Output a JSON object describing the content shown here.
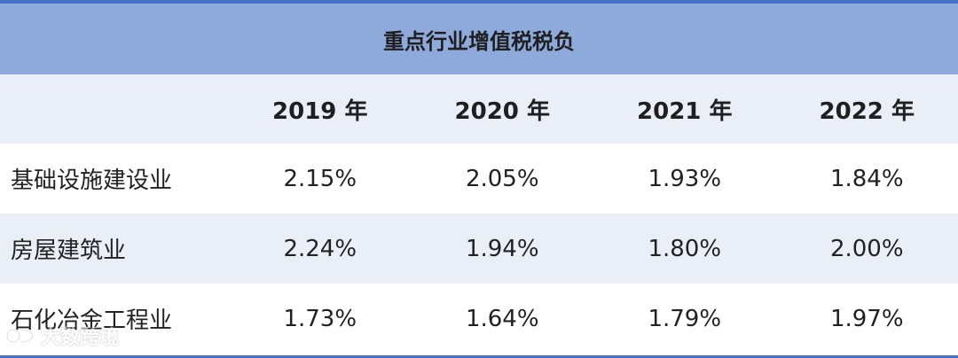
{
  "table": {
    "title": "重点行业增值税税负",
    "columns": [
      "",
      "2019 年",
      "2020 年",
      "2021 年",
      "2022 年"
    ],
    "rows": [
      {
        "label": "基础设施建设业",
        "values": [
          "2.15%",
          "2.05%",
          "1.93%",
          "1.84%"
        ]
      },
      {
        "label": "房屋建筑业",
        "values": [
          "2.24%",
          "1.94%",
          "1.80%",
          "2.00%"
        ]
      },
      {
        "label": "石化冶金工程业",
        "values": [
          "1.73%",
          "1.64%",
          "1.79%",
          "1.97%"
        ]
      }
    ]
  },
  "watermark": {
    "text": "大数跨境"
  },
  "colors": {
    "border": "#4472c4",
    "title_bg": "#8eaadb",
    "tint_bg": "#e9eef7"
  }
}
